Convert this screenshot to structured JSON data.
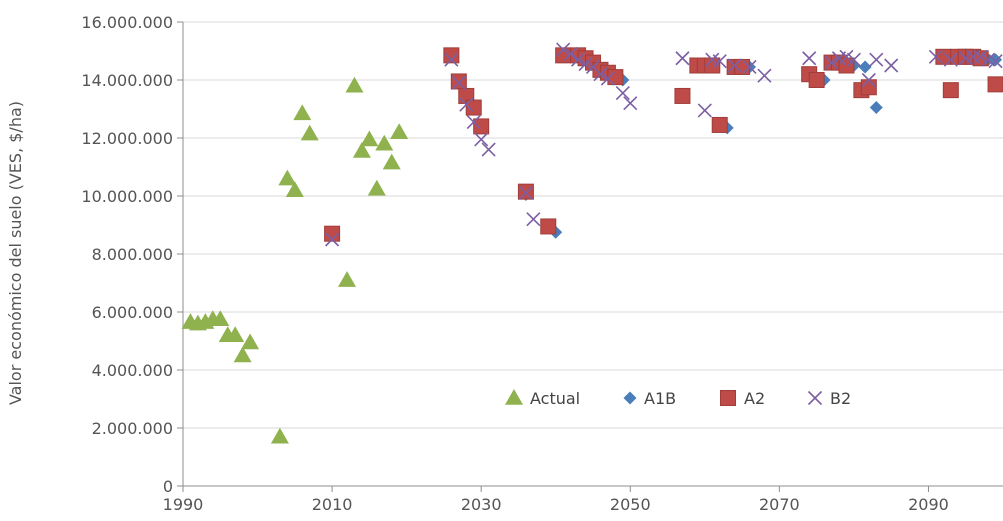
{
  "chart_data": {
    "type": "scatter",
    "title": "",
    "xlabel": "",
    "ylabel": "Valor económico del suelo (VES, $/ha)",
    "xlim": [
      1990,
      2100
    ],
    "ylim": [
      0,
      16000000
    ],
    "xticks": [
      1990,
      2010,
      2030,
      2050,
      2070,
      2090
    ],
    "xtick_labels": [
      "1990",
      "2010",
      "2030",
      "2050",
      "2070",
      "2090"
    ],
    "yticks": [
      0,
      2000000,
      4000000,
      6000000,
      8000000,
      10000000,
      12000000,
      14000000,
      16000000
    ],
    "ytick_labels": [
      "0",
      "2.000.000",
      "4.000.000",
      "6.000.000",
      "8.000.000",
      "10.000.000",
      "12.000.000",
      "14.000.000",
      "16.000.000"
    ],
    "grid": "horizontal",
    "legend_position": "inside-bottom-right",
    "series": [
      {
        "name": "Actual",
        "marker": "triangle",
        "color": "#8fb24f",
        "points": [
          [
            1991,
            5650000
          ],
          [
            1992,
            5600000
          ],
          [
            1993,
            5650000
          ],
          [
            1994,
            5750000
          ],
          [
            1995,
            5750000
          ],
          [
            1996,
            5200000
          ],
          [
            1997,
            5200000
          ],
          [
            1998,
            4500000
          ],
          [
            1999,
            4950000
          ],
          [
            2003,
            1700000
          ],
          [
            2004,
            10600000
          ],
          [
            2005,
            10200000
          ],
          [
            2006,
            12850000
          ],
          [
            2007,
            12150000
          ],
          [
            2012,
            7100000
          ],
          [
            2013,
            13800000
          ],
          [
            2014,
            11550000
          ],
          [
            2015,
            11950000
          ],
          [
            2016,
            10250000
          ],
          [
            2017,
            11800000
          ],
          [
            2018,
            11150000
          ],
          [
            2019,
            12200000
          ]
        ]
      },
      {
        "name": "A1B",
        "marker": "diamond",
        "color": "#4a7ebb",
        "points": [
          [
            2010,
            8650000
          ],
          [
            2026,
            14850000
          ],
          [
            2027,
            13950000
          ],
          [
            2028,
            13450000
          ],
          [
            2029,
            13050000
          ],
          [
            2030,
            12400000
          ],
          [
            2036,
            10050000
          ],
          [
            2039,
            8950000
          ],
          [
            2040,
            8750000
          ],
          [
            2041,
            14850000
          ],
          [
            2043,
            14850000
          ],
          [
            2044,
            14750000
          ],
          [
            2045,
            14600000
          ],
          [
            2046,
            14350000
          ],
          [
            2047,
            14250000
          ],
          [
            2048,
            14100000
          ],
          [
            2049,
            14000000
          ],
          [
            2057,
            13450000
          ],
          [
            2059,
            14500000
          ],
          [
            2060,
            14500000
          ],
          [
            2061,
            14500000
          ],
          [
            2062,
            12450000
          ],
          [
            2063,
            12350000
          ],
          [
            2064,
            14450000
          ],
          [
            2066,
            14450000
          ],
          [
            2074,
            14200000
          ],
          [
            2075,
            14000000
          ],
          [
            2076,
            14000000
          ],
          [
            2077,
            14600000
          ],
          [
            2078,
            14600000
          ],
          [
            2079,
            14500000
          ],
          [
            2080,
            14500000
          ],
          [
            2081,
            13600000
          ],
          [
            2081.5,
            14450000
          ],
          [
            2082,
            13750000
          ],
          [
            2083,
            13050000
          ],
          [
            2092,
            14800000
          ],
          [
            2093,
            14800000
          ],
          [
            2094,
            14800000
          ],
          [
            2095,
            14800000
          ],
          [
            2096,
            14800000
          ],
          [
            2097,
            14750000
          ],
          [
            2098,
            14700000
          ],
          [
            2099,
            14700000
          ]
        ]
      },
      {
        "name": "A2",
        "marker": "square",
        "color": "#be4b48",
        "points": [
          [
            2010,
            8700000
          ],
          [
            2026,
            14850000
          ],
          [
            2027,
            13950000
          ],
          [
            2028,
            13450000
          ],
          [
            2029,
            13050000
          ],
          [
            2030,
            12400000
          ],
          [
            2036,
            10150000
          ],
          [
            2039,
            8950000
          ],
          [
            2041,
            14850000
          ],
          [
            2043,
            14850000
          ],
          [
            2044,
            14750000
          ],
          [
            2045,
            14600000
          ],
          [
            2046,
            14350000
          ],
          [
            2047,
            14250000
          ],
          [
            2048,
            14100000
          ],
          [
            2057,
            13450000
          ],
          [
            2059,
            14500000
          ],
          [
            2060,
            14500000
          ],
          [
            2061,
            14500000
          ],
          [
            2062,
            12450000
          ],
          [
            2064,
            14450000
          ],
          [
            2065,
            14450000
          ],
          [
            2074,
            14200000
          ],
          [
            2075,
            14000000
          ],
          [
            2077,
            14600000
          ],
          [
            2078,
            14600000
          ],
          [
            2079,
            14500000
          ],
          [
            2081,
            13650000
          ],
          [
            2082,
            13750000
          ],
          [
            2092,
            14800000
          ],
          [
            2093,
            13650000
          ],
          [
            2094,
            14800000
          ],
          [
            2095,
            14800000
          ],
          [
            2096,
            14800000
          ],
          [
            2097,
            14750000
          ],
          [
            2099,
            13850000
          ]
        ]
      },
      {
        "name": "B2",
        "marker": "x",
        "color": "#7c5fa3",
        "points": [
          [
            2010,
            8500000
          ],
          [
            2026,
            14700000
          ],
          [
            2027,
            13900000
          ],
          [
            2028,
            13150000
          ],
          [
            2029,
            12550000
          ],
          [
            2030,
            11950000
          ],
          [
            2031,
            11600000
          ],
          [
            2036,
            10100000
          ],
          [
            2037,
            9200000
          ],
          [
            2041,
            15050000
          ],
          [
            2042,
            14900000
          ],
          [
            2043,
            14700000
          ],
          [
            2044,
            14550000
          ],
          [
            2045,
            14450000
          ],
          [
            2046,
            14200000
          ],
          [
            2047,
            14050000
          ],
          [
            2049,
            13550000
          ],
          [
            2050,
            13200000
          ],
          [
            2057,
            14750000
          ],
          [
            2060,
            12950000
          ],
          [
            2061,
            14700000
          ],
          [
            2062,
            14650000
          ],
          [
            2064,
            14500000
          ],
          [
            2066,
            14450000
          ],
          [
            2068,
            14150000
          ],
          [
            2074,
            14750000
          ],
          [
            2077,
            14600000
          ],
          [
            2078,
            14750000
          ],
          [
            2079,
            14800000
          ],
          [
            2080,
            14700000
          ],
          [
            2082,
            14000000
          ],
          [
            2083,
            14700000
          ],
          [
            2085,
            14500000
          ],
          [
            2091,
            14800000
          ],
          [
            2093,
            14700000
          ],
          [
            2095,
            14750000
          ],
          [
            2096,
            14800000
          ],
          [
            2097,
            14800000
          ],
          [
            2098,
            14700000
          ],
          [
            2099,
            14650000
          ]
        ]
      }
    ]
  }
}
